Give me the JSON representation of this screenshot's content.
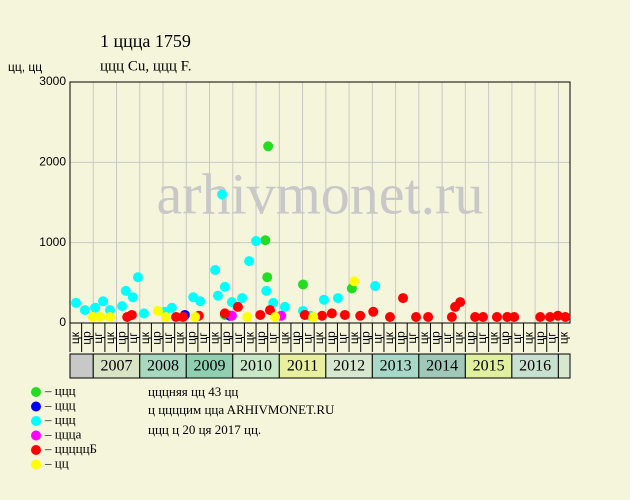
{
  "chart_data": {
    "type": "scatter",
    "title": "1 цццa 1759",
    "subtitle": "ццц Cu, ццц F.",
    "y_label": "цц, цц",
    "watermark": "arhivmonet.ru",
    "xlim": [
      2006.5,
      2017.25
    ],
    "ylim": [
      0,
      3000
    ],
    "yticks": [
      0,
      1000,
      2000,
      3000
    ],
    "grid": true,
    "xticks": [
      {
        "value": 2006.5,
        "label": "цк"
      },
      {
        "value": 2006.75,
        "label": "цр"
      },
      {
        "value": 2007,
        "label": "цг"
      },
      {
        "value": 2007.25,
        "label": "цк"
      },
      {
        "value": 2007.5,
        "label": "цр"
      },
      {
        "value": 2007.75,
        "label": "цг"
      },
      {
        "value": 2008,
        "label": "цк"
      },
      {
        "value": 2008.25,
        "label": "цр"
      },
      {
        "value": 2008.5,
        "label": "цг"
      },
      {
        "value": 2008.75,
        "label": "цк"
      },
      {
        "value": 2009,
        "label": "цр"
      },
      {
        "value": 2009.25,
        "label": "цг"
      },
      {
        "value": 2009.5,
        "label": "цк"
      },
      {
        "value": 2009.75,
        "label": "цр"
      },
      {
        "value": 2010,
        "label": "цг"
      },
      {
        "value": 2010.25,
        "label": "цк"
      },
      {
        "value": 2010.5,
        "label": "цр"
      },
      {
        "value": 2010.75,
        "label": "цг"
      },
      {
        "value": 2011,
        "label": "цк"
      },
      {
        "value": 2011.25,
        "label": "цр"
      },
      {
        "value": 2011.5,
        "label": "цг"
      },
      {
        "value": 2011.75,
        "label": "цк"
      },
      {
        "value": 2012,
        "label": "цр"
      },
      {
        "value": 2012.25,
        "label": "цг"
      },
      {
        "value": 2012.5,
        "label": "цк"
      },
      {
        "value": 2012.75,
        "label": "цр"
      },
      {
        "value": 2013,
        "label": "цг"
      },
      {
        "value": 2013.25,
        "label": "цк"
      },
      {
        "value": 2013.5,
        "label": "цр"
      },
      {
        "value": 2013.75,
        "label": "цг"
      },
      {
        "value": 2014,
        "label": "цк"
      },
      {
        "value": 2014.25,
        "label": "цр"
      },
      {
        "value": 2014.5,
        "label": "цг"
      },
      {
        "value": 2014.75,
        "label": "цк"
      },
      {
        "value": 2015,
        "label": "цр"
      },
      {
        "value": 2015.25,
        "label": "цг"
      },
      {
        "value": 2015.5,
        "label": "цк"
      },
      {
        "value": 2015.75,
        "label": "цр"
      },
      {
        "value": 2016,
        "label": "цг"
      },
      {
        "value": 2016.25,
        "label": "цк"
      },
      {
        "value": 2016.5,
        "label": "цр"
      },
      {
        "value": 2016.75,
        "label": "цг"
      },
      {
        "value": 2017,
        "label": "цк"
      }
    ],
    "years": [
      {
        "year": 2007,
        "color": "#d8e4c4"
      },
      {
        "year": 2008,
        "color": "#a8d8c0"
      },
      {
        "year": 2009,
        "color": "#90d0b0"
      },
      {
        "year": 2010,
        "color": "#c8e8c8"
      },
      {
        "year": 2011,
        "color": "#e8f0a0"
      },
      {
        "year": 2012,
        "color": "#d8e8d0"
      },
      {
        "year": 2013,
        "color": "#a8d8c8"
      },
      {
        "year": 2014,
        "color": "#a0c8b8"
      },
      {
        "year": 2015,
        "color": "#e0f0a0"
      },
      {
        "year": 2016,
        "color": "#c8e0d0"
      }
    ],
    "series": [
      {
        "name": "– ццц",
        "color": "#22dd22",
        "x": [
          2010.76,
          2010.7,
          2010.74,
          2011.51,
          2012.56,
          2009.83
        ],
        "values": [
          2200,
          1030,
          570,
          480,
          430,
          100
        ]
      },
      {
        "name": "– ццц",
        "color": "#0000ff",
        "x": [
          2008.97,
          2009.94
        ],
        "values": [
          100,
          90
        ]
      },
      {
        "name": "– ццц",
        "color": "#00ffff",
        "x": [
          2006.63,
          2006.82,
          2007.04,
          2007.21,
          2007.36,
          2007.62,
          2007.7,
          2007.85,
          2007.96,
          2008.09,
          2008.54,
          2008.69,
          2009.15,
          2009.3,
          2009.62,
          2009.77,
          2009.83,
          2009.68,
          2009.98,
          2010.2,
          2010.35,
          2010.5,
          2010.72,
          2010.87,
          2011.12,
          2011.51,
          2011.96,
          2012.26,
          2013.06,
          2011.66
        ],
        "values": [
          250,
          160,
          190,
          270,
          160,
          210,
          400,
          320,
          570,
          120,
          140,
          190,
          320,
          270,
          660,
          1600,
          450,
          340,
          260,
          310,
          770,
          1020,
          400,
          250,
          200,
          150,
          290,
          310,
          460,
          90
        ]
      },
      {
        "name": "– цццa",
        "color": "#ff00ff",
        "x": [
          2009.98,
          2011.04
        ],
        "values": [
          90,
          90
        ]
      },
      {
        "name": "– цццццБ",
        "color": "#ff0000",
        "x": [
          2007.73,
          2007.83,
          2008.78,
          2008.93,
          2009.27,
          2009.83,
          2010.11,
          2010.59,
          2010.8,
          2011.55,
          2011.92,
          2012.13,
          2012.41,
          2012.74,
          2013.02,
          2013.38,
          2013.66,
          2013.94,
          2014.2,
          2014.71,
          2014.78,
          2014.89,
          2015.21,
          2015.38,
          2015.68,
          2015.9,
          2016.05,
          2016.61,
          2016.82,
          2016.99,
          2017.15
        ],
        "values": [
          75,
          100,
          75,
          75,
          90,
          120,
          200,
          100,
          160,
          100,
          90,
          120,
          100,
          90,
          140,
          75,
          310,
          75,
          75,
          75,
          200,
          260,
          75,
          75,
          75,
          75,
          75,
          75,
          75,
          90,
          75
        ]
      },
      {
        "name": "– цц",
        "color": "#ffff00",
        "x": [
          2006.99,
          2007.15,
          2007.36,
          2008.39,
          2008.56,
          2009.19,
          2010.31,
          2010.91,
          2011.73,
          2012.61
        ],
        "values": [
          75,
          75,
          75,
          150,
          75,
          75,
          75,
          75,
          75,
          520
        ]
      }
    ],
    "notes": [
      "цццняя цц 43 цц",
      "ц ццццим ццa ARHIVMONET.RU",
      "ццц ц 20 ця 2017 цц."
    ]
  }
}
